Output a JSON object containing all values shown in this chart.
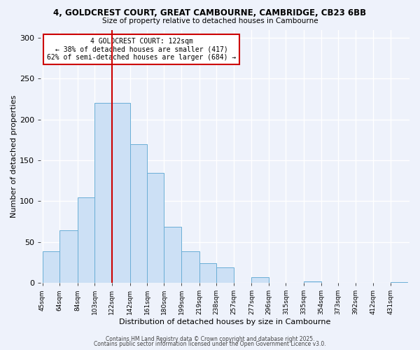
{
  "title_line1": "4, GOLDCREST COURT, GREAT CAMBOURNE, CAMBRIDGE, CB23 6BB",
  "title_line2": "Size of property relative to detached houses in Cambourne",
  "xlabel": "Distribution of detached houses by size in Cambourne",
  "ylabel": "Number of detached properties",
  "bar_labels": [
    "45sqm",
    "64sqm",
    "84sqm",
    "103sqm",
    "122sqm",
    "142sqm",
    "161sqm",
    "180sqm",
    "199sqm",
    "219sqm",
    "238sqm",
    "257sqm",
    "277sqm",
    "296sqm",
    "315sqm",
    "335sqm",
    "354sqm",
    "373sqm",
    "392sqm",
    "412sqm",
    "431sqm"
  ],
  "bar_values": [
    39,
    64,
    105,
    220,
    220,
    170,
    135,
    69,
    39,
    24,
    19,
    0,
    7,
    0,
    0,
    2,
    0,
    0,
    0,
    0,
    1
  ],
  "bar_edges": [
    45,
    64,
    84,
    103,
    122,
    142,
    161,
    180,
    199,
    219,
    238,
    257,
    277,
    296,
    315,
    335,
    354,
    373,
    392,
    412,
    431,
    450
  ],
  "bar_color": "#cce0f5",
  "bar_edge_color": "#6aaed6",
  "vline_x": 122,
  "vline_color": "#cc0000",
  "annotation_text": "4 GOLDCREST COURT: 122sqm\n← 38% of detached houses are smaller (417)\n62% of semi-detached houses are larger (684) →",
  "annotation_box_color": "#ffffff",
  "annotation_box_edge": "#cc0000",
  "ylim": [
    0,
    310
  ],
  "yticks": [
    0,
    50,
    100,
    150,
    200,
    250,
    300
  ],
  "background_color": "#eef2fb",
  "grid_color": "#ffffff",
  "footer1": "Contains HM Land Registry data © Crown copyright and database right 2025.",
  "footer2": "Contains public sector information licensed under the Open Government Licence v3.0."
}
